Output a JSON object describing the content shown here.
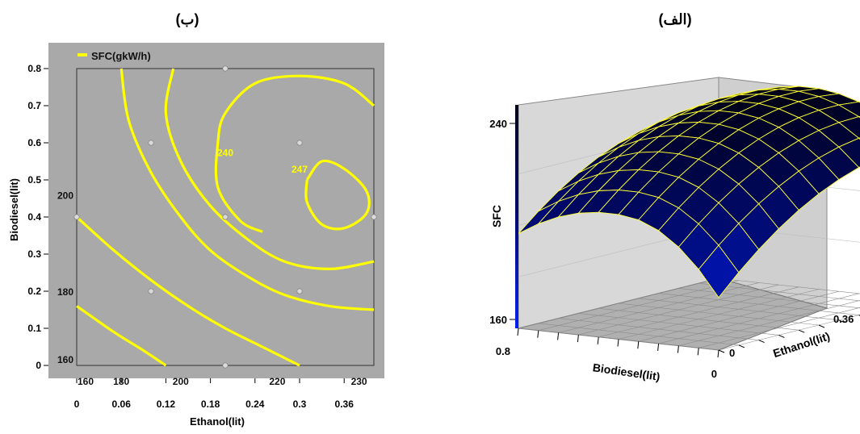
{
  "chart_data": [
    {
      "type": "contour",
      "panel_label": "(ب)",
      "legend": "SFC(gkW/h)",
      "xlabel": "Ethanol(lit)",
      "ylabel": "Biodiesel(lit)",
      "xlim": [
        0,
        0.4
      ],
      "ylim": [
        0,
        0.8
      ],
      "xticks": [
        "0",
        "0.06",
        "0.12",
        "0.18",
        "0.24",
        "0.3",
        "0.36"
      ],
      "yticks": [
        "0",
        "0.1",
        "0.2",
        "0.3",
        "0.4",
        "0.5",
        "0.6",
        "0.7",
        "0.8"
      ],
      "contour_labels": [
        {
          "text": "160",
          "x": 0.0,
          "y": 0.0
        },
        {
          "text": "180",
          "x": 0.06,
          "y": 0.0
        },
        {
          "text": "200",
          "x": 0.14,
          "y": 0.0
        },
        {
          "text": "220",
          "x": 0.27,
          "y": 0.0
        },
        {
          "text": "230",
          "x": 0.38,
          "y": 0.0
        },
        {
          "text": "160",
          "x": 0.0,
          "y": 0.02
        },
        {
          "text": "180",
          "x": 0.0,
          "y": 0.2
        },
        {
          "text": "200",
          "x": 0.0,
          "y": 0.46
        },
        {
          "text": "240",
          "x": 0.2,
          "y": 0.575
        },
        {
          "text": "247",
          "x": 0.3,
          "y": 0.53
        }
      ],
      "contour_levels": [
        {
          "level": "180",
          "points": [
            [
              0.0,
              0.16
            ],
            [
              0.05,
              0.09
            ],
            [
              0.09,
              0.04
            ],
            [
              0.12,
              0.0
            ]
          ]
        },
        {
          "level": "200",
          "points": [
            [
              0.0,
              0.4
            ],
            [
              0.05,
              0.31
            ],
            [
              0.1,
              0.23
            ],
            [
              0.15,
              0.16
            ],
            [
              0.2,
              0.1
            ],
            [
              0.25,
              0.05
            ],
            [
              0.3,
              0.0
            ]
          ]
        },
        {
          "level": "220",
          "points": [
            [
              0.06,
              0.8
            ],
            [
              0.07,
              0.66
            ],
            [
              0.1,
              0.52
            ],
            [
              0.14,
              0.4
            ],
            [
              0.18,
              0.31
            ],
            [
              0.23,
              0.24
            ],
            [
              0.28,
              0.19
            ],
            [
              0.34,
              0.16
            ],
            [
              0.4,
              0.15
            ]
          ]
        },
        {
          "level": "230",
          "points": [
            [
              0.13,
              0.8
            ],
            [
              0.12,
              0.68
            ],
            [
              0.14,
              0.55
            ],
            [
              0.18,
              0.43
            ],
            [
              0.23,
              0.34
            ],
            [
              0.28,
              0.28
            ],
            [
              0.34,
              0.26
            ],
            [
              0.4,
              0.28
            ]
          ]
        },
        {
          "level": "240",
          "points": [
            [
              0.4,
              0.7
            ],
            [
              0.36,
              0.76
            ],
            [
              0.3,
              0.78
            ],
            [
              0.24,
              0.76
            ],
            [
              0.2,
              0.68
            ],
            [
              0.19,
              0.6
            ],
            [
              0.19,
              0.48
            ],
            [
              0.22,
              0.39
            ],
            [
              0.25,
              0.36
            ]
          ]
        },
        {
          "level": "247",
          "points": [
            [
              0.31,
              0.5
            ],
            [
              0.33,
              0.55
            ],
            [
              0.36,
              0.53
            ],
            [
              0.39,
              0.47
            ],
            [
              0.39,
              0.41
            ],
            [
              0.36,
              0.37
            ],
            [
              0.33,
              0.38
            ],
            [
              0.31,
              0.44
            ],
            [
              0.31,
              0.5
            ]
          ]
        }
      ],
      "design_points": [
        [
          0.0,
          0.4
        ],
        [
          0.1,
          0.2
        ],
        [
          0.1,
          0.6
        ],
        [
          0.2,
          0.0
        ],
        [
          0.2,
          0.4
        ],
        [
          0.2,
          0.8
        ],
        [
          0.3,
          0.2
        ],
        [
          0.3,
          0.6
        ],
        [
          0.4,
          0.4
        ]
      ],
      "colors": {
        "panel": "#a9a9a9",
        "contour": "#ffff00",
        "point": "#d9d9d9"
      }
    },
    {
      "type": "surface",
      "panel_label": "(الف)",
      "zlabel": "SFC",
      "xlabel": "Biodiesel(lit)",
      "ylabel": "Ethanol(lit)",
      "zticks": [
        "240",
        "160"
      ],
      "biodiesel_ticks": [
        "0.8",
        "0"
      ],
      "ethanol_ticks": [
        "0",
        "0.36"
      ],
      "zlim": [
        160,
        250
      ],
      "grid": "10x10",
      "colors": {
        "high": "#000018",
        "low": "#0020f0",
        "mesh": "#ffff33",
        "wall": "#d8d8d8",
        "floor": "#b0b0b0"
      }
    }
  ]
}
